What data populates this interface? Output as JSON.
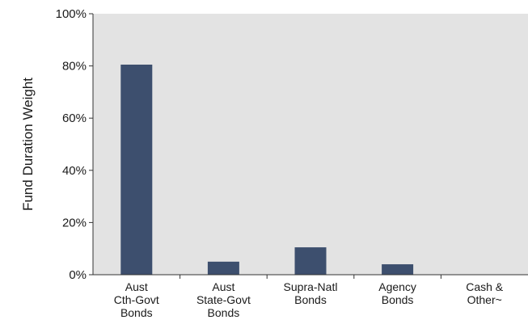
{
  "chart_data": {
    "type": "bar",
    "title": "",
    "xlabel": "",
    "ylabel": "Fund Duration Weight",
    "ylim": [
      0,
      100
    ],
    "yticks": [
      {
        "value": 0,
        "label": "0%"
      },
      {
        "value": 20,
        "label": "20%"
      },
      {
        "value": 40,
        "label": "40%"
      },
      {
        "value": 60,
        "label": "60%"
      },
      {
        "value": 80,
        "label": "80%"
      },
      {
        "value": 100,
        "label": "100%"
      }
    ],
    "categories": [
      [
        "Aust",
        "Cth-Govt",
        "Bonds"
      ],
      [
        "Aust",
        "State-Govt",
        "Bonds"
      ],
      [
        "Supra-Natl",
        "Bonds"
      ],
      [
        "Agency",
        "Bonds"
      ],
      [
        "Cash &",
        "Other~"
      ]
    ],
    "values": [
      80.5,
      5,
      10.5,
      4,
      0
    ],
    "grid": false,
    "legend": "none"
  },
  "colors": {
    "bar": "#3d4f6e",
    "plot_background": "#e3e3e3",
    "axis": "#333333"
  }
}
